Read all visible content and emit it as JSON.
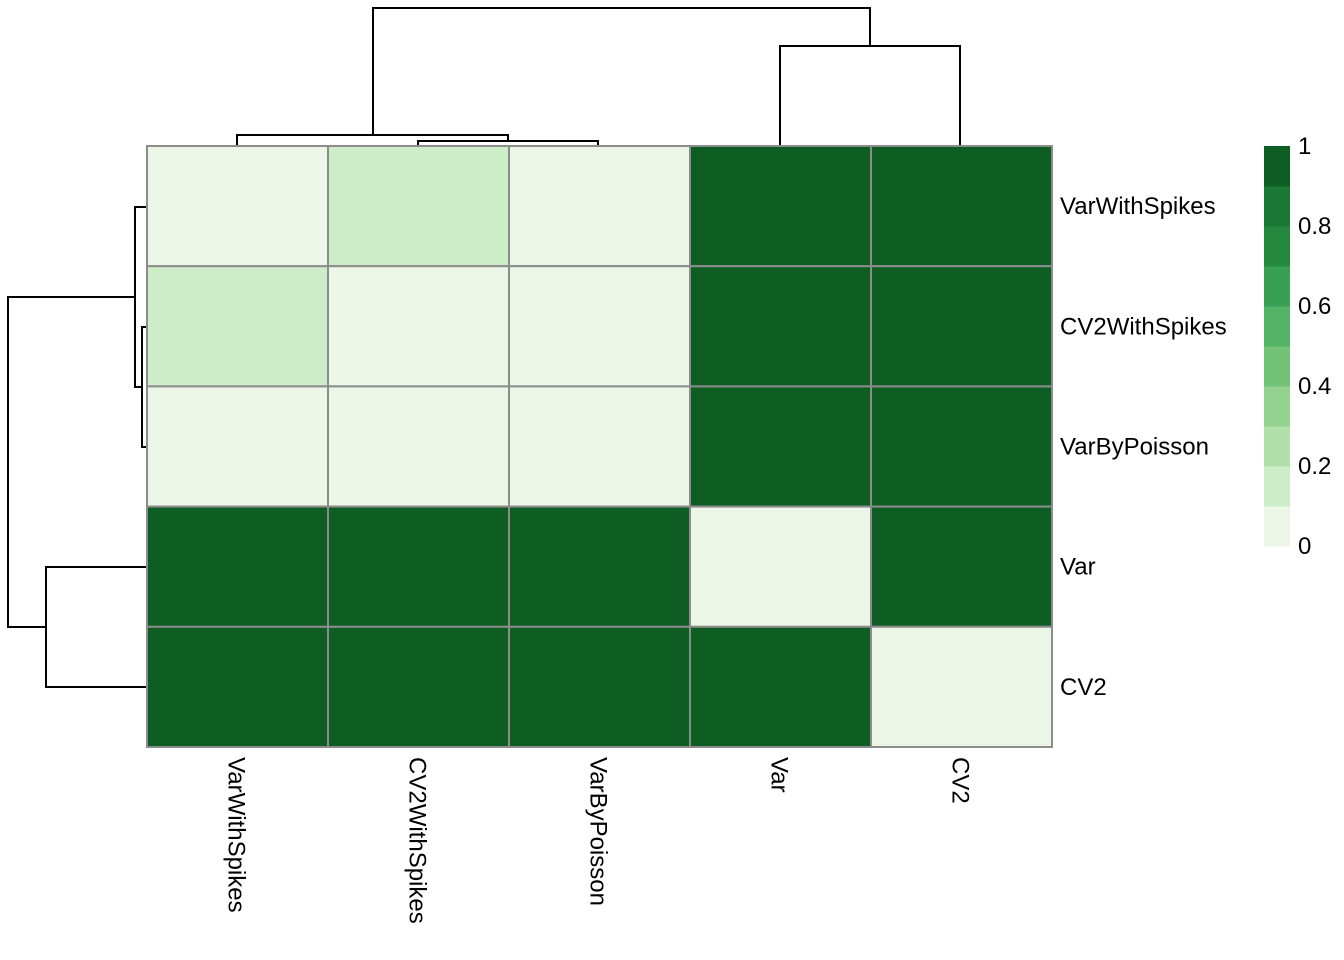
{
  "chart_data": {
    "type": "heatmap",
    "title": "",
    "rows": [
      "VarWithSpikes",
      "CV2WithSpikes",
      "VarByPoisson",
      "Var",
      "CV2"
    ],
    "columns": [
      "VarWithSpikes",
      "CV2WithSpikes",
      "VarByPoisson",
      "Var",
      "CV2"
    ],
    "values": [
      [
        0.02,
        0.18,
        0.02,
        1.0,
        1.0
      ],
      [
        0.18,
        0.02,
        0.02,
        1.0,
        1.0
      ],
      [
        0.02,
        0.02,
        0.02,
        1.0,
        1.0
      ],
      [
        1.0,
        1.0,
        1.0,
        0.02,
        1.0
      ],
      [
        1.0,
        1.0,
        1.0,
        1.0,
        0.02
      ]
    ],
    "row_dendrogram": true,
    "column_dendrogram": true,
    "legend": {
      "labels": [
        "1",
        "0.8",
        "0.6",
        "0.4",
        "0.2",
        "0"
      ],
      "ticks": [
        1,
        0.8,
        0.6,
        0.4,
        0.2,
        0
      ],
      "range": [
        0,
        1
      ],
      "bins": 10,
      "position": "right"
    },
    "colors": [
      "#ebf6e6",
      "#cdecc8",
      "#b2e0ab",
      "#94d290",
      "#73c377",
      "#53b466",
      "#37a055",
      "#24893f",
      "#197935",
      "#0e5e24"
    ]
  }
}
